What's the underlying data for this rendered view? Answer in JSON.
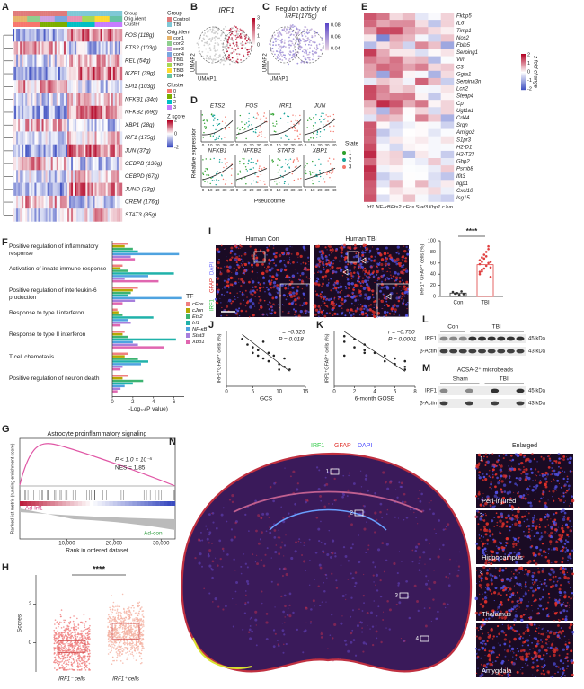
{
  "panel_labels": [
    "A",
    "B",
    "C",
    "D",
    "E",
    "F",
    "G",
    "H",
    "I",
    "J",
    "K",
    "L",
    "M",
    "N"
  ],
  "A": {
    "group_title": "Group",
    "group": [
      "Control",
      "TBI"
    ],
    "orig_title": "Orig.ident",
    "orig": [
      "con1",
      "con2",
      "con3",
      "con4",
      "TBI1",
      "TBI2",
      "TBI3",
      "TBI4"
    ],
    "cluster_title": "Cluster",
    "cluster": [
      "0",
      "1",
      "2",
      "3"
    ],
    "z_title": "Z score",
    "z_ticks": [
      2,
      0,
      -2
    ],
    "genes": [
      "FOS (118g)",
      "ETS2 (103g)",
      "REL (54g)",
      "IKZF1 (39g)",
      "SPI1 (103g)",
      "NFKB1 (34g)",
      "NFKB2 (69g)",
      "XBP1 (28g)",
      "IRF1 (175g)",
      "JUN (37g)",
      "CEBPB (136g)",
      "CEBPD (67g)",
      "JUND (33g)",
      "CREM (176g)",
      "STAT3 (85g)"
    ]
  },
  "B": {
    "title": "IRF1",
    "x_label": "UMAP1",
    "y_label": "UMAP2",
    "colorbar_ticks": [
      3,
      2,
      1,
      0
    ]
  },
  "C": {
    "title_line1": "Regulon activity of",
    "title_line2": "IRF1(175g)",
    "x_label": "UMAP1",
    "y_label": "UMAP2",
    "colorbar_ticks": [
      0.08,
      0.06,
      0.04
    ]
  },
  "D": {
    "genes": [
      "ETS2",
      "FOS",
      "IRF1",
      "JUN",
      "NFKB1",
      "NFKB2",
      "STAT3",
      "XBP1"
    ],
    "x_label": "Pseudotime",
    "y_label": "Relative expression",
    "xticks": [
      0,
      10,
      20,
      30,
      40
    ],
    "legend_title": "State",
    "states": [
      "1",
      "2",
      "3"
    ],
    "state_colors": [
      "#2ca02c",
      "#17a398",
      "#f4766a"
    ]
  },
  "E": {
    "genes": [
      "Fkbp5",
      "IL6",
      "Timp1",
      "Nos2",
      "Fbln5",
      "Serping1",
      "Vim",
      "C3",
      "Ggta1",
      "Serpina3n",
      "Lcn2",
      "Steap4",
      "Cp",
      "Ugt1a1",
      "Cd44",
      "Srgn",
      "Amigo2",
      "S1pr3",
      "H2-D1",
      "H2-T23",
      "Gbp2",
      "Psmb8",
      "Ifit3",
      "Iigp1",
      "Cxcl10",
      "Isg15"
    ],
    "columns": [
      "Irf1",
      "NF-κB",
      "Ets2",
      "cFos",
      "Stat3",
      "Xbp1",
      "cJun"
    ],
    "colorbar_title": "z fold change",
    "colorbar_ticks": [
      2,
      1,
      0,
      -1,
      -2
    ]
  },
  "F": {
    "type": "bar",
    "categories": [
      "Positive regulation of inflammatory response",
      "Activation of innate immune response",
      "Positive regulation of interleukin-6 production",
      "Response to type I interferon",
      "Response to type II interferon",
      "T cell chemotaxis",
      "Positive regulation of neuron death"
    ],
    "series": [
      {
        "name": "cFos",
        "color": "#f08080",
        "values": [
          1.5,
          1.0,
          2.5,
          0.5,
          1.2,
          1.5,
          1.5
        ]
      },
      {
        "name": "cJun",
        "color": "#b5a800",
        "values": [
          1.2,
          0.8,
          2.0,
          0.6,
          1.0,
          1.2,
          1.0
        ]
      },
      {
        "name": "Ets2",
        "color": "#3cb371",
        "values": [
          2.0,
          1.5,
          1.8,
          1.0,
          1.5,
          2.5,
          3.0
        ]
      },
      {
        "name": "Irf1",
        "color": "#20b2aa",
        "values": [
          2.5,
          6.0,
          1.5,
          4.0,
          6.2,
          3.5,
          2.0
        ]
      },
      {
        "name": "NF-κB",
        "color": "#4fa3e0",
        "values": [
          6.5,
          3.5,
          6.8,
          1.5,
          2.0,
          2.8,
          1.2
        ]
      },
      {
        "name": "Stat3",
        "color": "#a77fdc",
        "values": [
          1.8,
          1.2,
          2.2,
          1.8,
          2.5,
          1.0,
          0.8
        ]
      },
      {
        "name": "Xbp1",
        "color": "#e066b0",
        "values": [
          2.2,
          4.5,
          1.0,
          0.8,
          5.0,
          0.8,
          0.5
        ]
      }
    ],
    "legend_title": "TF",
    "x_label": "-Log₁₀(P value)",
    "xlim": [
      0,
      7
    ],
    "xticks": [
      0,
      2,
      4,
      6
    ]
  },
  "G": {
    "title": "Astrocyte proinflammatory  signaling",
    "p_text": "P < 1.0 × 10⁻⁵",
    "nes_text": "NES = 1.85",
    "up_label": "Ad-Irf1",
    "down_label": "Ad-con",
    "x_label": "Rank in ordered dataset",
    "y_label": "Ranked list metric (running enrichment score)",
    "xlim": [
      0,
      33000
    ],
    "xticks": [
      {
        "value": 10000,
        "label": "10,000"
      },
      {
        "value": 20000,
        "label": "20,000"
      },
      {
        "value": 30000,
        "label": "30,000"
      }
    ]
  },
  "H": {
    "stars": "****",
    "y_label": "Scores",
    "categories": [
      "IRF1⁻ cells",
      "IRF1⁺ cells"
    ],
    "ylim": [
      -1.5,
      3.5
    ],
    "yticks": [
      0,
      2
    ]
  },
  "I": {
    "image_titles": [
      "Human Con",
      "Human TBI"
    ],
    "stain": [
      "IRF1",
      "GFAP",
      "DAPI"
    ],
    "stars": "****",
    "y_label": "IRF1⁺ GFAP⁺ cells (%)",
    "categories": [
      "Con",
      "TBI"
    ],
    "values": [
      6,
      57
    ],
    "points": [
      [
        8,
        5,
        6,
        3,
        9,
        4
      ],
      [
        40,
        45,
        50,
        55,
        60,
        62,
        65,
        70,
        75,
        80,
        85,
        52,
        58,
        48,
        68,
        72,
        90,
        35,
        44,
        62
      ]
    ],
    "ylim": [
      0,
      100
    ],
    "yticks": [
      0,
      20,
      40,
      60,
      80,
      100
    ]
  },
  "J": {
    "stats": [
      "r = −0.525",
      "P = 0.018"
    ],
    "x_label": "GCS",
    "y_label": "IRF1⁺GFAP⁺ cells (%)",
    "xlim": [
      0,
      15
    ],
    "xticks": [
      0,
      5,
      10,
      15
    ],
    "ylim": [
      0,
      100
    ],
    "x": [
      3,
      4,
      5,
      5,
      6,
      6,
      7,
      7,
      8,
      8,
      9,
      10,
      10,
      11,
      11,
      12
    ],
    "y": [
      85,
      75,
      60,
      70,
      65,
      55,
      80,
      50,
      60,
      45,
      55,
      40,
      30,
      50,
      35,
      30
    ]
  },
  "K": {
    "stats": [
      "r = −0.750",
      "P = 0.0001"
    ],
    "x_label": "6-month GOSE",
    "y_label": "IRF1⁺GFAP⁺ cells (%)",
    "xlim": [
      0,
      8
    ],
    "xticks": [
      0,
      2,
      4,
      6,
      8
    ],
    "ylim": [
      0,
      100
    ],
    "x": [
      1,
      1,
      1,
      2,
      2,
      3,
      3,
      3,
      4,
      5,
      5,
      6,
      6,
      7,
      7,
      7
    ],
    "y": [
      90,
      80,
      55,
      85,
      70,
      75,
      60,
      65,
      60,
      55,
      45,
      50,
      40,
      45,
      35,
      30
    ]
  },
  "L": {
    "groups": [
      "Con",
      "TBI"
    ],
    "bands": [
      "IRF1",
      "β-Actin"
    ],
    "sizes": [
      "45 kDa",
      "43 kDa"
    ]
  },
  "M": {
    "title": "ACSA-2⁺ microbeads",
    "groups": [
      "Sham",
      "TBI"
    ],
    "bands": [
      "IRF1",
      "β-Actin"
    ],
    "sizes": [
      "45 kDa",
      "43 kDa"
    ]
  },
  "N": {
    "stain": [
      "IRF1",
      "GFAP",
      "DAPI"
    ],
    "enlarged_title": "Enlarged",
    "regions": [
      {
        "number": "1",
        "name": "Peri-injured"
      },
      {
        "number": "2",
        "name": "Hippocampus"
      },
      {
        "number": "3",
        "name": "Thalamus"
      },
      {
        "number": "4",
        "name": "Amygdala"
      }
    ]
  }
}
